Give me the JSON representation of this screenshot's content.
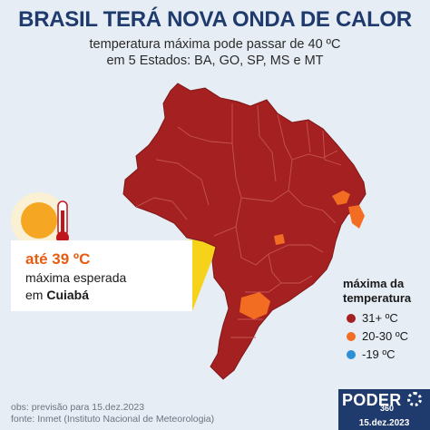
{
  "title": "BRASIL TERÁ NOVA ONDA DE CALOR",
  "subtitle_line1": "temperatura máxima pode passar de 40 ºC",
  "subtitle_line2": "em 5 Estados: BA, GO, SP, MS e MT",
  "callout": {
    "highlight": "até 39 ºC",
    "line2": "máxima esperada",
    "line3_prefix": "em",
    "city": "Cuiabá"
  },
  "legend": {
    "title_line1": "máxima da",
    "title_line2": "temperatura",
    "items": [
      {
        "label": "31+ ºC",
        "color": "#a52121"
      },
      {
        "label": "20-30 ºC",
        "color": "#f26d21"
      },
      {
        "label": "-19 ºC",
        "color": "#2f8fd6"
      }
    ]
  },
  "colors": {
    "title": "#1f3a6d",
    "hot": "#a52121",
    "warm": "#f26d21",
    "background": "#e6edf5",
    "sun": "#f5a623",
    "thermometer": "#c0161b"
  },
  "icons": [
    "sun-icon",
    "thermometer-icon"
  ],
  "footer_obs": "obs: previsão para 15.dez.2023",
  "footer_fonte": "fonte: Inmet (Instituto Nacional de Meteorologia)",
  "logo": {
    "name": "PODER",
    "number": "360"
  },
  "date": "15.dez.2023"
}
